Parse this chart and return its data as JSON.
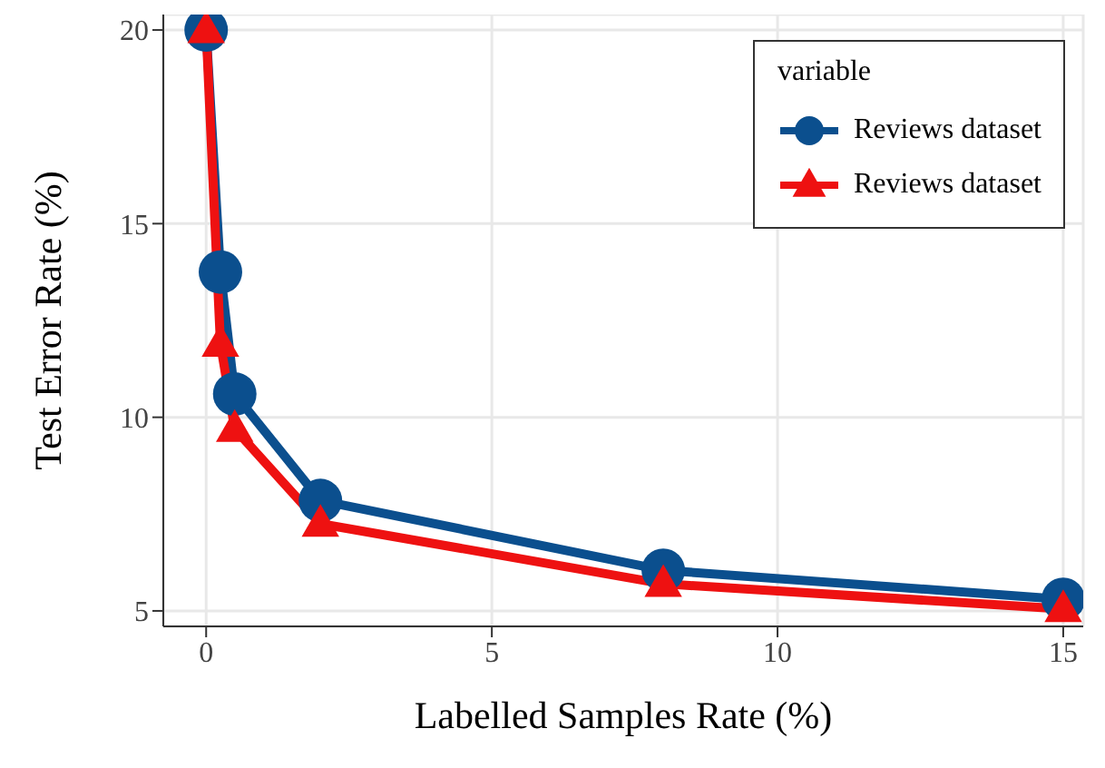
{
  "chart_data": {
    "type": "line",
    "xlabel": "Labelled Samples Rate (%)",
    "ylabel": "Test Error Rate (%)",
    "legend_title": "variable",
    "x": [
      0,
      0.25,
      0.5,
      2,
      8,
      15
    ],
    "series": [
      {
        "name": "Reviews dataset",
        "color": "#0b4f8e",
        "marker": "circle",
        "values": [
          20,
          13.75,
          10.6,
          7.85,
          6.05,
          5.3
        ]
      },
      {
        "name": "Reviews dataset",
        "color": "#ee1111",
        "marker": "triangle",
        "values": [
          20,
          11.9,
          9.7,
          7.25,
          5.7,
          5.05
        ]
      }
    ],
    "xlim": [
      -0.75,
      15.35
    ],
    "xticks": [
      0,
      5,
      10,
      15
    ],
    "ylim": [
      4.6,
      20.4
    ],
    "yticks": [
      5,
      10,
      15,
      20
    ],
    "grid": true,
    "legend": "top right",
    "line_style": "solid"
  }
}
